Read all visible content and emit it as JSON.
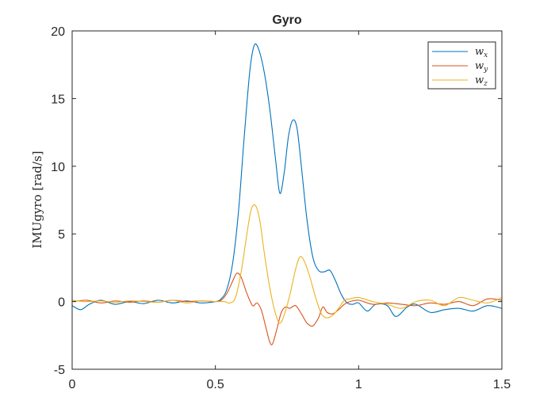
{
  "chart_data": {
    "type": "line",
    "title": "Gyro",
    "xlabel": "",
    "ylabel": "IMUgyro [rad/s]",
    "xlim": [
      0,
      1.5
    ],
    "ylim": [
      -5,
      20
    ],
    "xticks": [
      0,
      0.5,
      1,
      1.5
    ],
    "xtick_labels": [
      "0",
      "0.5",
      "1",
      "1.5"
    ],
    "yticks": [
      -5,
      0,
      5,
      10,
      15,
      20
    ],
    "ytick_labels": [
      "-5",
      "0",
      "5",
      "10",
      "15",
      "20"
    ],
    "grid": false,
    "legend_position": "top-right",
    "series": [
      {
        "name": "w_x",
        "legend_base": "w",
        "legend_sub": "x",
        "color": "#0072BD",
        "points": [
          [
            0,
            -0.3
          ],
          [
            0.03,
            -0.6
          ],
          [
            0.06,
            -0.2
          ],
          [
            0.1,
            0.1
          ],
          [
            0.15,
            -0.2
          ],
          [
            0.2,
            0.0
          ],
          [
            0.25,
            -0.15
          ],
          [
            0.3,
            0.1
          ],
          [
            0.35,
            -0.1
          ],
          [
            0.4,
            0.05
          ],
          [
            0.45,
            -0.1
          ],
          [
            0.5,
            0.0
          ],
          [
            0.52,
            0.2
          ],
          [
            0.54,
            0.9
          ],
          [
            0.56,
            2.8
          ],
          [
            0.58,
            6.5
          ],
          [
            0.6,
            12.0
          ],
          [
            0.62,
            17.0
          ],
          [
            0.635,
            18.9
          ],
          [
            0.65,
            18.7
          ],
          [
            0.67,
            17.0
          ],
          [
            0.69,
            14.2
          ],
          [
            0.71,
            10.5
          ],
          [
            0.725,
            8.0
          ],
          [
            0.74,
            9.5
          ],
          [
            0.755,
            12.2
          ],
          [
            0.77,
            13.4
          ],
          [
            0.785,
            12.8
          ],
          [
            0.8,
            10.0
          ],
          [
            0.82,
            6.0
          ],
          [
            0.84,
            3.3
          ],
          [
            0.86,
            2.3
          ],
          [
            0.88,
            2.2
          ],
          [
            0.9,
            2.3
          ],
          [
            0.92,
            1.5
          ],
          [
            0.94,
            0.5
          ],
          [
            0.96,
            -0.1
          ],
          [
            0.98,
            -0.2
          ],
          [
            1.0,
            -0.1
          ],
          [
            1.03,
            -0.7
          ],
          [
            1.06,
            -0.2
          ],
          [
            1.1,
            -0.3
          ],
          [
            1.13,
            -1.1
          ],
          [
            1.17,
            -0.4
          ],
          [
            1.2,
            -0.2
          ],
          [
            1.25,
            -0.8
          ],
          [
            1.3,
            -0.6
          ],
          [
            1.35,
            -0.5
          ],
          [
            1.4,
            -0.7
          ],
          [
            1.45,
            -0.3
          ],
          [
            1.5,
            -0.5
          ]
        ]
      },
      {
        "name": "w_y",
        "legend_base": "w",
        "legend_sub": "y",
        "color": "#D95319",
        "points": [
          [
            0,
            0.0
          ],
          [
            0.05,
            0.1
          ],
          [
            0.1,
            -0.1
          ],
          [
            0.15,
            0.05
          ],
          [
            0.2,
            -0.05
          ],
          [
            0.25,
            0.05
          ],
          [
            0.3,
            -0.05
          ],
          [
            0.35,
            0.1
          ],
          [
            0.4,
            0.0
          ],
          [
            0.45,
            0.05
          ],
          [
            0.5,
            0.0
          ],
          [
            0.52,
            0.1
          ],
          [
            0.54,
            0.6
          ],
          [
            0.56,
            1.5
          ],
          [
            0.575,
            2.1
          ],
          [
            0.59,
            1.8
          ],
          [
            0.61,
            0.6
          ],
          [
            0.63,
            -0.3
          ],
          [
            0.645,
            -0.1
          ],
          [
            0.66,
            -0.6
          ],
          [
            0.675,
            -1.8
          ],
          [
            0.69,
            -3.0
          ],
          [
            0.7,
            -3.1
          ],
          [
            0.715,
            -2.0
          ],
          [
            0.73,
            -0.8
          ],
          [
            0.745,
            -0.4
          ],
          [
            0.76,
            -0.5
          ],
          [
            0.78,
            -0.3
          ],
          [
            0.8,
            -0.9
          ],
          [
            0.82,
            -1.6
          ],
          [
            0.84,
            -1.8
          ],
          [
            0.86,
            -1.2
          ],
          [
            0.875,
            -0.4
          ],
          [
            0.89,
            -0.8
          ],
          [
            0.91,
            -0.9
          ],
          [
            0.93,
            -0.6
          ],
          [
            0.95,
            -0.2
          ],
          [
            0.97,
            0.0
          ],
          [
            1.0,
            0.1
          ],
          [
            1.05,
            -0.2
          ],
          [
            1.1,
            -0.1
          ],
          [
            1.15,
            -0.2
          ],
          [
            1.2,
            -0.3
          ],
          [
            1.25,
            -0.1
          ],
          [
            1.3,
            -0.2
          ],
          [
            1.35,
            0.0
          ],
          [
            1.4,
            -0.3
          ],
          [
            1.45,
            0.2
          ],
          [
            1.5,
            0.1
          ]
        ]
      },
      {
        "name": "w_z",
        "legend_base": "w",
        "legend_sub": "z",
        "color": "#EDB120",
        "points": [
          [
            0,
            0.1
          ],
          [
            0.05,
            0.0
          ],
          [
            0.1,
            0.05
          ],
          [
            0.15,
            -0.05
          ],
          [
            0.2,
            0.05
          ],
          [
            0.25,
            0.0
          ],
          [
            0.3,
            -0.05
          ],
          [
            0.35,
            0.1
          ],
          [
            0.4,
            -0.1
          ],
          [
            0.45,
            0.05
          ],
          [
            0.5,
            0.0
          ],
          [
            0.53,
            0.0
          ],
          [
            0.55,
            -0.1
          ],
          [
            0.57,
            0.3
          ],
          [
            0.59,
            2.2
          ],
          [
            0.61,
            5.0
          ],
          [
            0.625,
            6.8
          ],
          [
            0.64,
            7.1
          ],
          [
            0.655,
            6.0
          ],
          [
            0.67,
            3.7
          ],
          [
            0.69,
            1.0
          ],
          [
            0.71,
            -0.9
          ],
          [
            0.725,
            -1.6
          ],
          [
            0.74,
            -1.0
          ],
          [
            0.76,
            0.5
          ],
          [
            0.78,
            2.4
          ],
          [
            0.795,
            3.3
          ],
          [
            0.81,
            3.0
          ],
          [
            0.83,
            1.8
          ],
          [
            0.85,
            0.3
          ],
          [
            0.87,
            -0.9
          ],
          [
            0.89,
            -1.2
          ],
          [
            0.91,
            -1.0
          ],
          [
            0.93,
            -0.5
          ],
          [
            0.95,
            0.1
          ],
          [
            0.97,
            0.2
          ],
          [
            1.0,
            0.3
          ],
          [
            1.05,
            0.0
          ],
          [
            1.1,
            -0.2
          ],
          [
            1.15,
            -0.5
          ],
          [
            1.2,
            0.0
          ],
          [
            1.25,
            0.1
          ],
          [
            1.3,
            -0.3
          ],
          [
            1.35,
            0.3
          ],
          [
            1.4,
            0.1
          ],
          [
            1.45,
            -0.1
          ],
          [
            1.5,
            0.3
          ]
        ]
      }
    ]
  }
}
